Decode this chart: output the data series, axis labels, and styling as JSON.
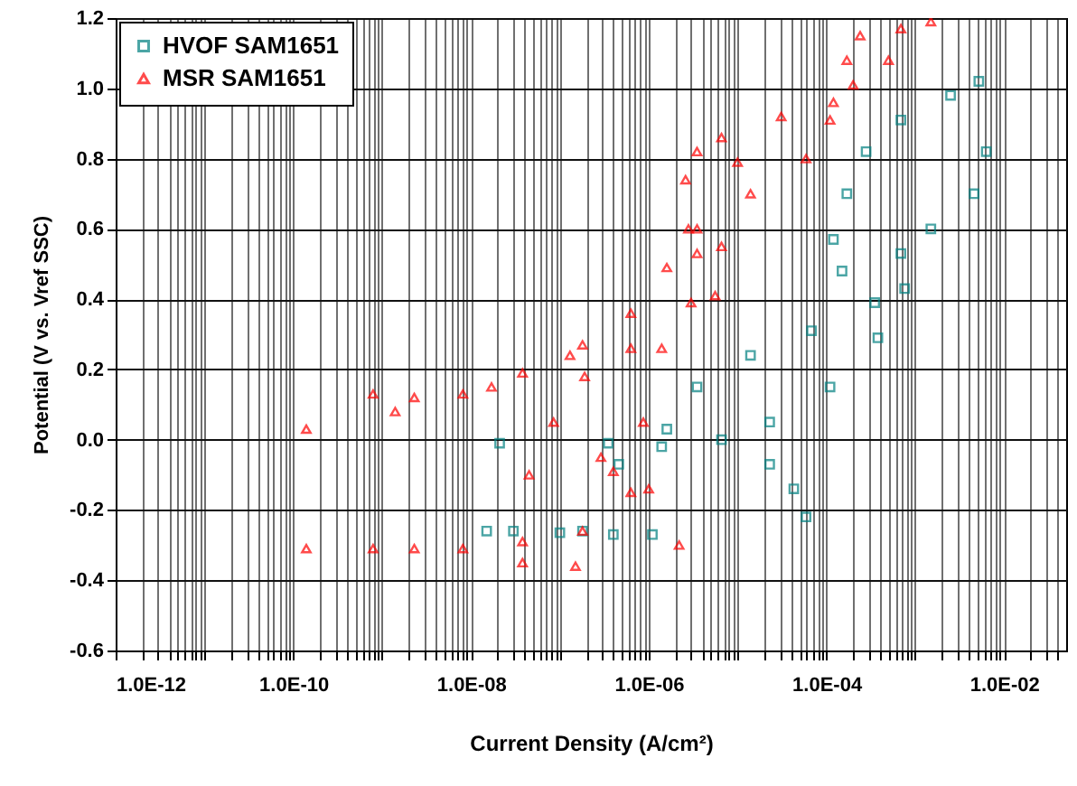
{
  "chart_data": {
    "type": "scatter",
    "xlabel": "Current Density (A/cm²)",
    "ylabel": "Potential (V vs. Vref SSC)",
    "log": "x",
    "grid": true,
    "legend": "top left",
    "xlim": [
      1e-12,
      0.05
    ],
    "ylim": [
      -0.6,
      1.2
    ],
    "yticks": [
      {
        "value": -0.6,
        "label": "-0.6"
      },
      {
        "value": -0.4,
        "label": "-0.4"
      },
      {
        "value": -0.2,
        "label": "-0.2"
      },
      {
        "value": 0,
        "label": "0.0"
      },
      {
        "value": 0.2,
        "label": "0.2"
      },
      {
        "value": 0.4,
        "label": "0.4"
      },
      {
        "value": 0.6,
        "label": "0.6"
      },
      {
        "value": 0.8,
        "label": "0.8"
      },
      {
        "value": 1,
        "label": "1.0"
      },
      {
        "value": 1.2,
        "label": "1.2"
      }
    ],
    "xticks": [
      {
        "value": 1e-12,
        "label": "1.0E-12"
      },
      {
        "value": 2e-12,
        "label": null
      },
      {
        "value": 3e-12,
        "label": null
      },
      {
        "value": 4e-12,
        "label": null
      },
      {
        "value": 5e-12,
        "label": null
      },
      {
        "value": 6e-12,
        "label": null
      },
      {
        "value": 7e-12,
        "label": null
      },
      {
        "value": 8e-12,
        "label": null
      },
      {
        "value": 9e-12,
        "label": null
      },
      {
        "value": 1e-11,
        "label": null
      },
      {
        "value": 2e-11,
        "label": null
      },
      {
        "value": 3e-11,
        "label": null
      },
      {
        "value": 4e-11,
        "label": null
      },
      {
        "value": 5e-11,
        "label": null
      },
      {
        "value": 6e-11,
        "label": null
      },
      {
        "value": 7e-11,
        "label": null
      },
      {
        "value": 8e-11,
        "label": null
      },
      {
        "value": 9e-11,
        "label": null
      },
      {
        "value": 1e-10,
        "label": "1.0E-10"
      },
      {
        "value": 2e-10,
        "label": null
      },
      {
        "value": 3e-10,
        "label": null
      },
      {
        "value": 4e-10,
        "label": null
      },
      {
        "value": 5e-10,
        "label": null
      },
      {
        "value": 6e-10,
        "label": null
      },
      {
        "value": 7e-10,
        "label": null
      },
      {
        "value": 8e-10,
        "label": null
      },
      {
        "value": 9e-10,
        "label": null
      },
      {
        "value": 1e-09,
        "label": null
      },
      {
        "value": 2e-09,
        "label": null
      },
      {
        "value": 3e-09,
        "label": null
      },
      {
        "value": 4e-09,
        "label": null
      },
      {
        "value": 5e-09,
        "label": null
      },
      {
        "value": 6e-09,
        "label": null
      },
      {
        "value": 7e-09,
        "label": null
      },
      {
        "value": 8e-09,
        "label": null
      },
      {
        "value": 9e-09,
        "label": null
      },
      {
        "value": 1e-08,
        "label": "1.0E-08"
      },
      {
        "value": 2e-08,
        "label": null
      },
      {
        "value": 3e-08,
        "label": null
      },
      {
        "value": 4e-08,
        "label": null
      },
      {
        "value": 5e-08,
        "label": null
      },
      {
        "value": 6e-08,
        "label": null
      },
      {
        "value": 7e-08,
        "label": null
      },
      {
        "value": 8e-08,
        "label": null
      },
      {
        "value": 9e-08,
        "label": null
      },
      {
        "value": 1e-07,
        "label": null
      },
      {
        "value": 2e-07,
        "label": null
      },
      {
        "value": 3e-07,
        "label": null
      },
      {
        "value": 4e-07,
        "label": null
      },
      {
        "value": 5e-07,
        "label": null
      },
      {
        "value": 6e-07,
        "label": null
      },
      {
        "value": 7e-07,
        "label": null
      },
      {
        "value": 8e-07,
        "label": null
      },
      {
        "value": 9e-07,
        "label": null
      },
      {
        "value": 1e-06,
        "label": "1.0E-06"
      },
      {
        "value": 2e-06,
        "label": null
      },
      {
        "value": 3e-06,
        "label": null
      },
      {
        "value": 4e-06,
        "label": null
      },
      {
        "value": 5e-06,
        "label": null
      },
      {
        "value": 6e-06,
        "label": null
      },
      {
        "value": 7e-06,
        "label": null
      },
      {
        "value": 8e-06,
        "label": null
      },
      {
        "value": 9e-06,
        "label": null
      },
      {
        "value": 1e-05,
        "label": null
      },
      {
        "value": 2e-05,
        "label": null
      },
      {
        "value": 3e-05,
        "label": null
      },
      {
        "value": 4e-05,
        "label": null
      },
      {
        "value": 5e-05,
        "label": null
      },
      {
        "value": 6e-05,
        "label": null
      },
      {
        "value": 7e-05,
        "label": null
      },
      {
        "value": 8e-05,
        "label": null
      },
      {
        "value": 9e-05,
        "label": null
      },
      {
        "value": 0.0001,
        "label": "1.0E-04"
      },
      {
        "value": 0.0002,
        "label": null
      },
      {
        "value": 0.0003,
        "label": null
      },
      {
        "value": 0.0004,
        "label": null
      },
      {
        "value": 0.0005,
        "label": null
      },
      {
        "value": 0.0006,
        "label": null
      },
      {
        "value": 0.0007,
        "label": null
      },
      {
        "value": 0.0008,
        "label": null
      },
      {
        "value": 0.0009,
        "label": null
      },
      {
        "value": 0.001,
        "label": null
      },
      {
        "value": 0.002,
        "label": null
      },
      {
        "value": 0.003,
        "label": null
      },
      {
        "value": 0.004,
        "label": null
      },
      {
        "value": 0.005,
        "label": null
      },
      {
        "value": 0.006,
        "label": null
      },
      {
        "value": 0.007,
        "label": null
      },
      {
        "value": 0.008,
        "label": null
      },
      {
        "value": 0.009,
        "label": null
      },
      {
        "value": 0.01,
        "label": "1.0E-02"
      },
      {
        "value": 0.02,
        "label": null
      },
      {
        "value": 0.03,
        "label": null
      },
      {
        "value": 0.04,
        "label": null
      }
    ],
    "series": [
      {
        "name": "HVOF SAM1651",
        "color": "#008080",
        "marker": "square",
        "x": [
          1.5e-08,
          3e-08,
          1e-07,
          4e-07,
          1.1e-06,
          1.8e-07,
          4.6e-07,
          1.6e-06,
          3.5e-06,
          1.4e-05,
          6.8e-05,
          0.00035,
          0.00015,
          0.00012,
          0.00017,
          0.00028,
          0.00069,
          0.0025,
          0.0052,
          0.0063,
          0.0046,
          0.0015,
          0.00069,
          0.00076,
          0.00038,
          0.00011,
          2.3e-05,
          6.6e-06,
          1.4e-06,
          3.5e-07,
          2.3e-05,
          4.3e-05,
          5.9e-05,
          2.1e-08
        ],
        "values": [
          -0.26,
          -0.26,
          -0.265,
          -0.27,
          -0.27,
          -0.26,
          -0.07,
          0.03,
          0.15,
          0.24,
          0.31,
          0.39,
          0.48,
          0.57,
          0.7,
          0.82,
          0.91,
          0.98,
          1.02,
          0.82,
          0.7,
          0.6,
          0.53,
          0.43,
          0.29,
          0.15,
          0.05,
          0,
          -0.02,
          -0.01,
          -0.07,
          -0.14,
          -0.22,
          -0.01
        ]
      },
      {
        "name": "MSR SAM1651",
        "color": "#ff0000",
        "marker": "triangle",
        "x": [
          1.4e-10,
          7.9e-10,
          2.3e-09,
          8.1e-09,
          3.8e-08,
          1.8e-07,
          3.8e-08,
          1.5e-07,
          6.3e-07,
          8.7e-07,
          1.4e-06,
          3e-06,
          3.5e-06,
          2.8e-06,
          2.6e-06,
          3.5e-06,
          6.6e-06,
          3.1e-05,
          0.00012,
          0.00017,
          0.00024,
          0.00069,
          0.0015,
          0.0005,
          0.0002,
          0.00011,
          5.9e-05,
          1.4e-05,
          3.5e-06,
          1.6e-06,
          6.3e-07,
          1.3e-07,
          1.8e-07,
          3.8e-08,
          8.1e-09,
          2.3e-09,
          7.9e-10,
          1.4e-10,
          1.7e-08,
          8.5e-08,
          4e-07,
          2.9e-07,
          1e-06,
          2.2e-06,
          6.6e-06,
          5.6e-06,
          1e-05,
          6.3e-07,
          4.5e-08,
          1.4e-09,
          1.9e-07
        ],
        "values": [
          -0.31,
          -0.31,
          -0.31,
          -0.31,
          -0.29,
          -0.26,
          -0.35,
          -0.36,
          -0.15,
          0.05,
          0.26,
          0.39,
          0.53,
          0.6,
          0.74,
          0.82,
          0.86,
          0.92,
          0.96,
          1.08,
          1.15,
          1.17,
          1.19,
          1.08,
          1.01,
          0.91,
          0.8,
          0.7,
          0.6,
          0.49,
          0.36,
          0.24,
          0.27,
          0.19,
          0.13,
          0.12,
          0.13,
          0.03,
          0.15,
          0.05,
          -0.09,
          -0.05,
          -0.14,
          -0.3,
          0.55,
          0.41,
          0.79,
          0.26,
          -0.1,
          0.08,
          0.18
        ]
      }
    ]
  }
}
